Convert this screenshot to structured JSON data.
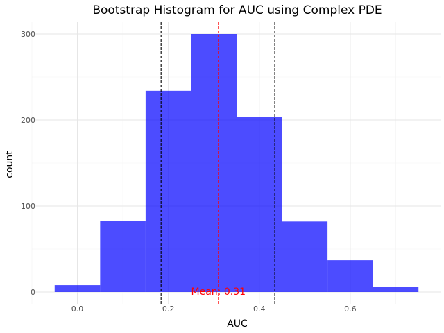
{
  "chart_data": {
    "type": "bar",
    "title": "Bootstrap Histogram for AUC using Complex PDE",
    "xlabel": "AUC",
    "ylabel": "count",
    "xlim": [
      -0.05,
      0.75
    ],
    "ylim": [
      0,
      300
    ],
    "xticks": [
      "0.0",
      "0.2",
      "0.4",
      "0.6"
    ],
    "yticks": [
      "0",
      "100",
      "200",
      "300"
    ],
    "bins": [
      {
        "x0": -0.05,
        "x1": 0.05,
        "count": 8
      },
      {
        "x0": 0.05,
        "x1": 0.15,
        "count": 83
      },
      {
        "x0": 0.15,
        "x1": 0.25,
        "count": 234
      },
      {
        "x0": 0.25,
        "x1": 0.35,
        "count": 300
      },
      {
        "x0": 0.35,
        "x1": 0.45,
        "count": 204
      },
      {
        "x0": 0.45,
        "x1": 0.55,
        "count": 82
      },
      {
        "x0": 0.55,
        "x1": 0.65,
        "count": 37
      },
      {
        "x0": 0.65,
        "x1": 0.75,
        "count": 6
      }
    ],
    "bar_color": "#0000ff",
    "mean_value": 0.31,
    "mean_label": "Mean: 0.31",
    "mean_line_color": "#ff0000",
    "ci_lines": [
      0.184,
      0.434
    ],
    "ci_line_color": "#000000",
    "grid": true,
    "legend": "none"
  }
}
